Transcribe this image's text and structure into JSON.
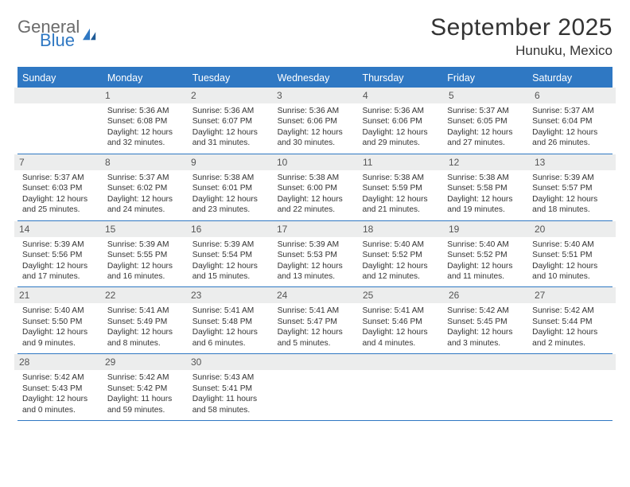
{
  "logo": {
    "general": "General",
    "blue": "Blue"
  },
  "title": "September 2025",
  "location": "Hunuku, Mexico",
  "weekdays": [
    "Sunday",
    "Monday",
    "Tuesday",
    "Wednesday",
    "Thursday",
    "Friday",
    "Saturday"
  ],
  "colors": {
    "brand_blue": "#2f78c3",
    "band_grey": "#eceded",
    "text": "#333333",
    "logo_grey": "#6b6b6b"
  },
  "weeks": [
    {
      "days": [
        {
          "num": "",
          "lines": []
        },
        {
          "num": "1",
          "lines": [
            "Sunrise: 5:36 AM",
            "Sunset: 6:08 PM",
            "Daylight: 12 hours and 32 minutes."
          ]
        },
        {
          "num": "2",
          "lines": [
            "Sunrise: 5:36 AM",
            "Sunset: 6:07 PM",
            "Daylight: 12 hours and 31 minutes."
          ]
        },
        {
          "num": "3",
          "lines": [
            "Sunrise: 5:36 AM",
            "Sunset: 6:06 PM",
            "Daylight: 12 hours and 30 minutes."
          ]
        },
        {
          "num": "4",
          "lines": [
            "Sunrise: 5:36 AM",
            "Sunset: 6:06 PM",
            "Daylight: 12 hours and 29 minutes."
          ]
        },
        {
          "num": "5",
          "lines": [
            "Sunrise: 5:37 AM",
            "Sunset: 6:05 PM",
            "Daylight: 12 hours and 27 minutes."
          ]
        },
        {
          "num": "6",
          "lines": [
            "Sunrise: 5:37 AM",
            "Sunset: 6:04 PM",
            "Daylight: 12 hours and 26 minutes."
          ]
        }
      ]
    },
    {
      "days": [
        {
          "num": "7",
          "lines": [
            "Sunrise: 5:37 AM",
            "Sunset: 6:03 PM",
            "Daylight: 12 hours and 25 minutes."
          ]
        },
        {
          "num": "8",
          "lines": [
            "Sunrise: 5:37 AM",
            "Sunset: 6:02 PM",
            "Daylight: 12 hours and 24 minutes."
          ]
        },
        {
          "num": "9",
          "lines": [
            "Sunrise: 5:38 AM",
            "Sunset: 6:01 PM",
            "Daylight: 12 hours and 23 minutes."
          ]
        },
        {
          "num": "10",
          "lines": [
            "Sunrise: 5:38 AM",
            "Sunset: 6:00 PM",
            "Daylight: 12 hours and 22 minutes."
          ]
        },
        {
          "num": "11",
          "lines": [
            "Sunrise: 5:38 AM",
            "Sunset: 5:59 PM",
            "Daylight: 12 hours and 21 minutes."
          ]
        },
        {
          "num": "12",
          "lines": [
            "Sunrise: 5:38 AM",
            "Sunset: 5:58 PM",
            "Daylight: 12 hours and 19 minutes."
          ]
        },
        {
          "num": "13",
          "lines": [
            "Sunrise: 5:39 AM",
            "Sunset: 5:57 PM",
            "Daylight: 12 hours and 18 minutes."
          ]
        }
      ]
    },
    {
      "days": [
        {
          "num": "14",
          "lines": [
            "Sunrise: 5:39 AM",
            "Sunset: 5:56 PM",
            "Daylight: 12 hours and 17 minutes."
          ]
        },
        {
          "num": "15",
          "lines": [
            "Sunrise: 5:39 AM",
            "Sunset: 5:55 PM",
            "Daylight: 12 hours and 16 minutes."
          ]
        },
        {
          "num": "16",
          "lines": [
            "Sunrise: 5:39 AM",
            "Sunset: 5:54 PM",
            "Daylight: 12 hours and 15 minutes."
          ]
        },
        {
          "num": "17",
          "lines": [
            "Sunrise: 5:39 AM",
            "Sunset: 5:53 PM",
            "Daylight: 12 hours and 13 minutes."
          ]
        },
        {
          "num": "18",
          "lines": [
            "Sunrise: 5:40 AM",
            "Sunset: 5:52 PM",
            "Daylight: 12 hours and 12 minutes."
          ]
        },
        {
          "num": "19",
          "lines": [
            "Sunrise: 5:40 AM",
            "Sunset: 5:52 PM",
            "Daylight: 12 hours and 11 minutes."
          ]
        },
        {
          "num": "20",
          "lines": [
            "Sunrise: 5:40 AM",
            "Sunset: 5:51 PM",
            "Daylight: 12 hours and 10 minutes."
          ]
        }
      ]
    },
    {
      "days": [
        {
          "num": "21",
          "lines": [
            "Sunrise: 5:40 AM",
            "Sunset: 5:50 PM",
            "Daylight: 12 hours and 9 minutes."
          ]
        },
        {
          "num": "22",
          "lines": [
            "Sunrise: 5:41 AM",
            "Sunset: 5:49 PM",
            "Daylight: 12 hours and 8 minutes."
          ]
        },
        {
          "num": "23",
          "lines": [
            "Sunrise: 5:41 AM",
            "Sunset: 5:48 PM",
            "Daylight: 12 hours and 6 minutes."
          ]
        },
        {
          "num": "24",
          "lines": [
            "Sunrise: 5:41 AM",
            "Sunset: 5:47 PM",
            "Daylight: 12 hours and 5 minutes."
          ]
        },
        {
          "num": "25",
          "lines": [
            "Sunrise: 5:41 AM",
            "Sunset: 5:46 PM",
            "Daylight: 12 hours and 4 minutes."
          ]
        },
        {
          "num": "26",
          "lines": [
            "Sunrise: 5:42 AM",
            "Sunset: 5:45 PM",
            "Daylight: 12 hours and 3 minutes."
          ]
        },
        {
          "num": "27",
          "lines": [
            "Sunrise: 5:42 AM",
            "Sunset: 5:44 PM",
            "Daylight: 12 hours and 2 minutes."
          ]
        }
      ]
    },
    {
      "days": [
        {
          "num": "28",
          "lines": [
            "Sunrise: 5:42 AM",
            "Sunset: 5:43 PM",
            "Daylight: 12 hours and 0 minutes."
          ]
        },
        {
          "num": "29",
          "lines": [
            "Sunrise: 5:42 AM",
            "Sunset: 5:42 PM",
            "Daylight: 11 hours and 59 minutes."
          ]
        },
        {
          "num": "30",
          "lines": [
            "Sunrise: 5:43 AM",
            "Sunset: 5:41 PM",
            "Daylight: 11 hours and 58 minutes."
          ]
        },
        {
          "num": "",
          "lines": []
        },
        {
          "num": "",
          "lines": []
        },
        {
          "num": "",
          "lines": []
        },
        {
          "num": "",
          "lines": []
        }
      ]
    }
  ]
}
